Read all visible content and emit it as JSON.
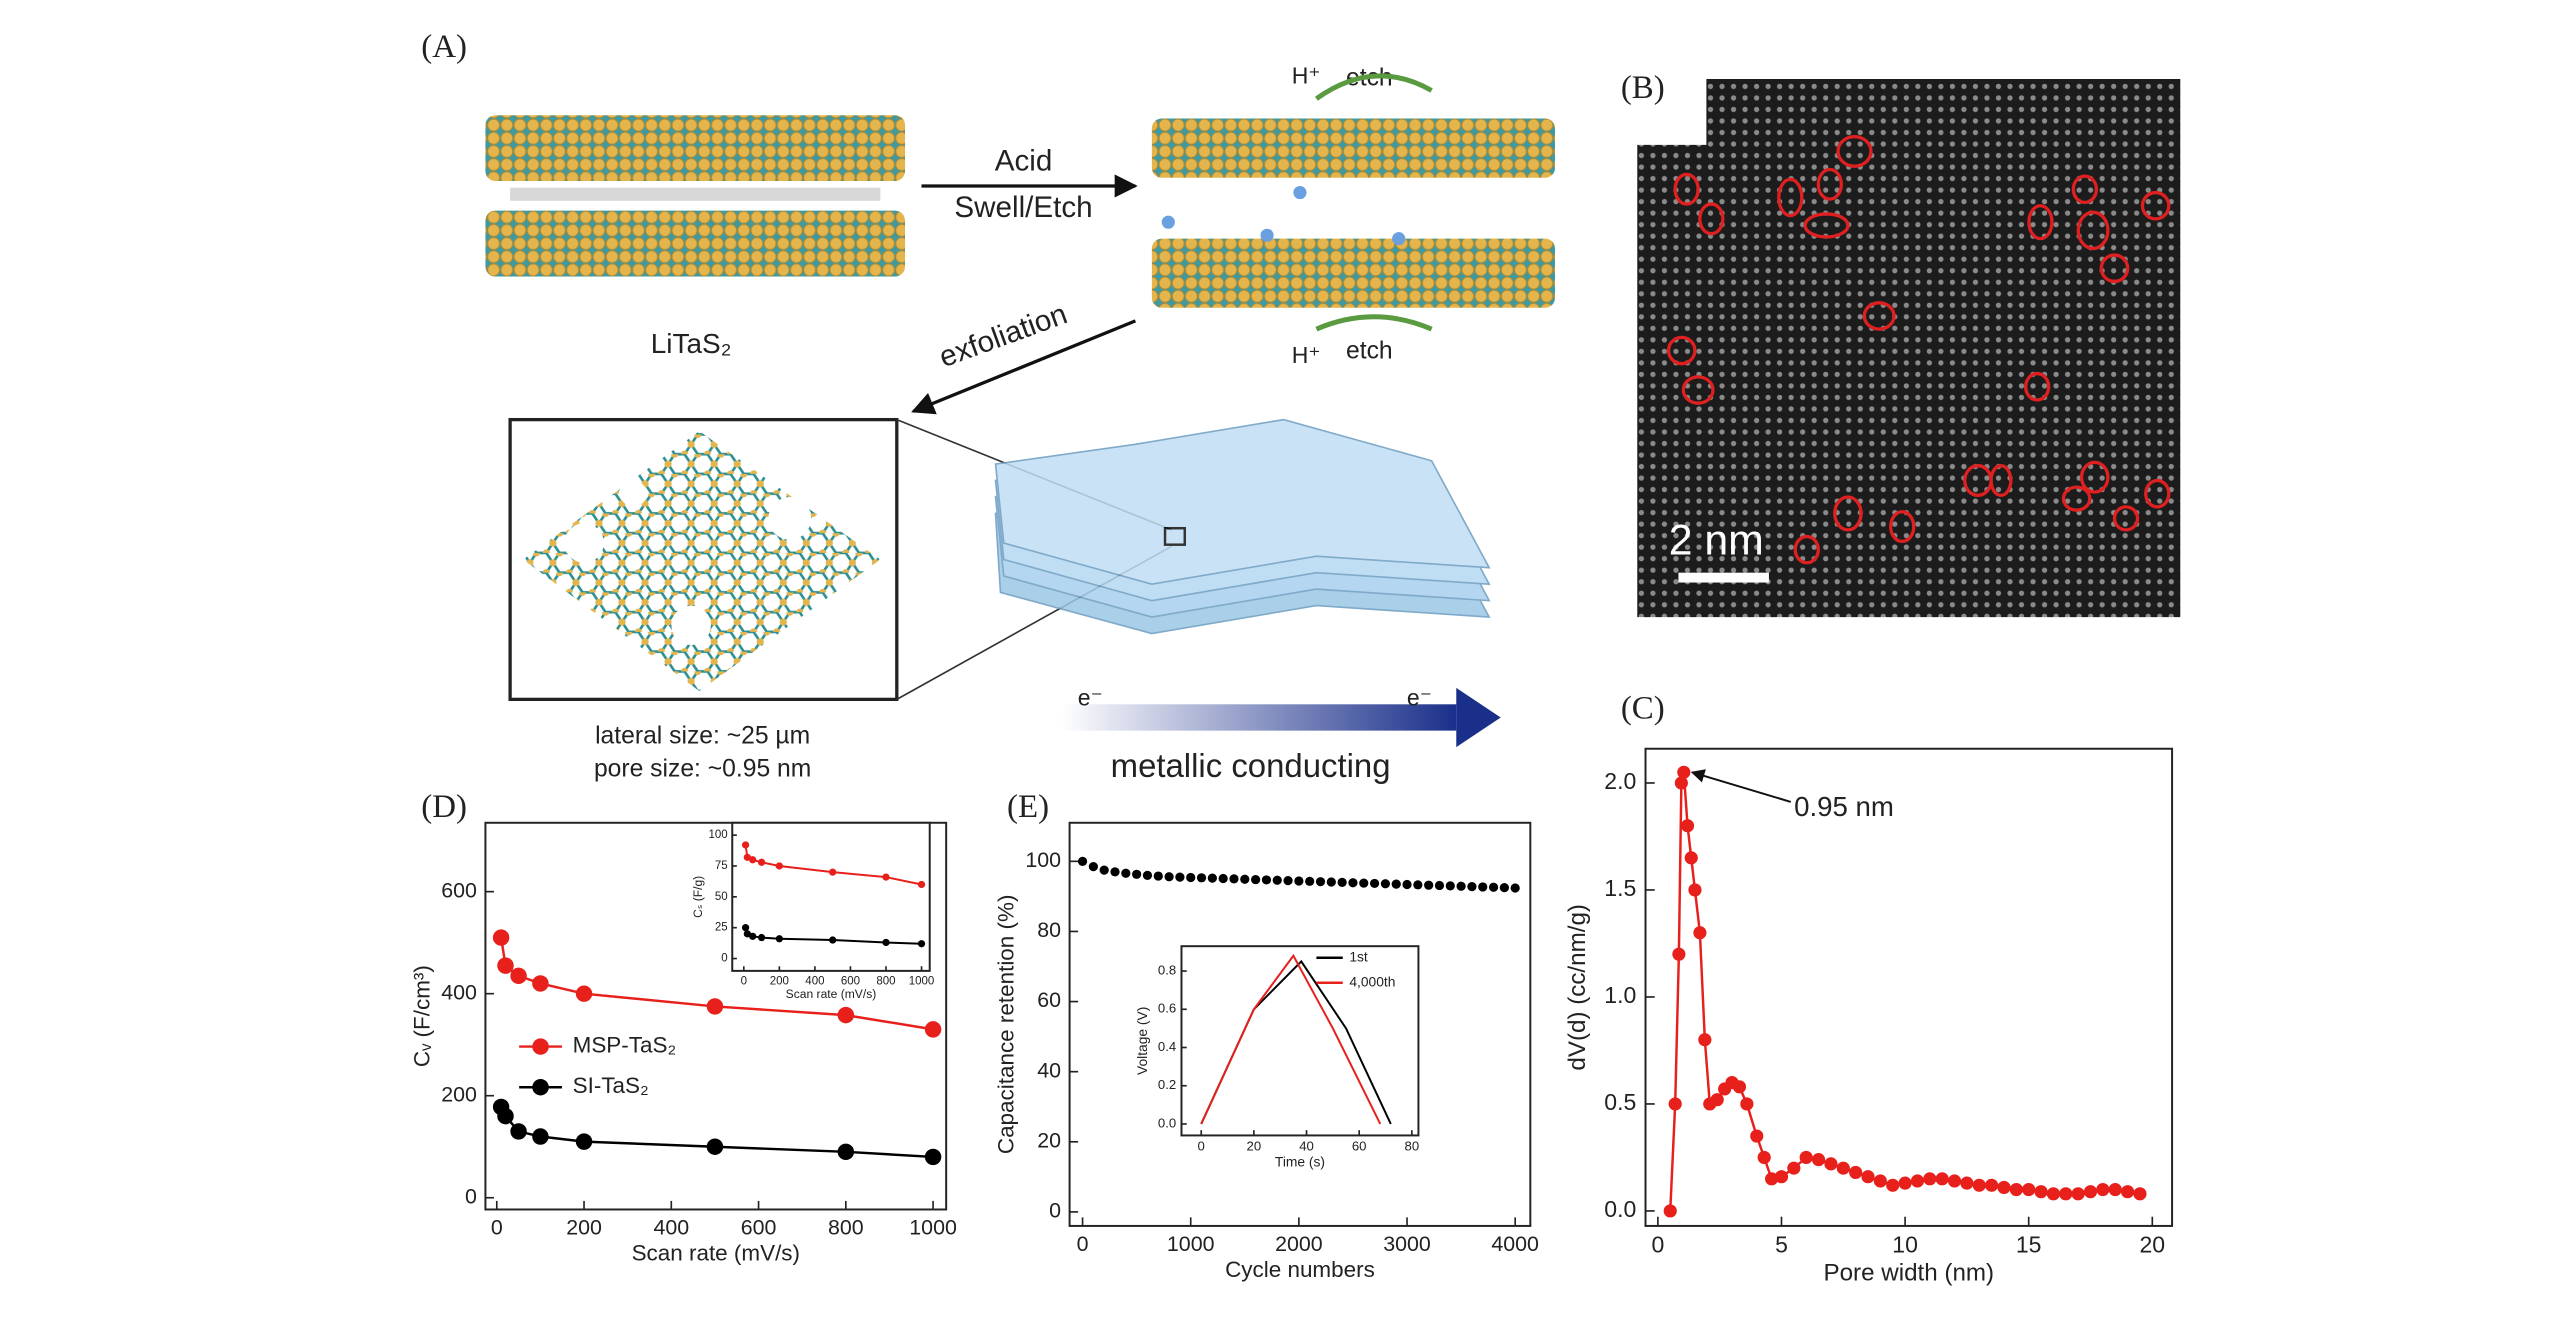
{
  "figure": {
    "panel_a": "(A)",
    "panel_b": "(B)",
    "panel_c": "(C)",
    "panel_d": "(D)",
    "panel_e": "(E)",
    "acid": "Acid",
    "swell_etch": "Swell/Etch",
    "litas2": "LiTaS₂",
    "exfoliation": "exfoliation",
    "h_plus": "H⁺",
    "etch": "etch",
    "lateral_size": "lateral size: ~25 µm",
    "pore_size": "pore size: ~0.95 nm",
    "electron": "e⁻",
    "metallic_conducting": "metallic conducting",
    "scale_bar": "2 nm"
  },
  "chart_data": [
    {
      "type": "line",
      "markers": true,
      "xlabel": "Scan rate (mV/s)",
      "ylabel": "Cᵥ (F/cm³)",
      "x": [
        10,
        20,
        50,
        100,
        200,
        500,
        800,
        1000
      ],
      "series": [
        {
          "name": "MSP-TaS₂",
          "color": "#e8201c",
          "values": [
            510,
            455,
            435,
            420,
            400,
            375,
            358,
            330
          ]
        },
        {
          "name": "SI-TaS₂",
          "color": "#000000",
          "values": [
            178,
            160,
            130,
            120,
            110,
            100,
            90,
            80
          ]
        }
      ],
      "xlim": [
        -26,
        1030
      ],
      "xticks": [
        0,
        200,
        400,
        600,
        800,
        1000
      ],
      "ylim": [
        -23,
        735
      ],
      "yticks": [
        0,
        200,
        400,
        600
      ]
    },
    {
      "type": "line",
      "markers": true,
      "xlabel": "Scan rate (mV/s)",
      "ylabel": "Cₛ (F/g)",
      "x": [
        10,
        20,
        50,
        100,
        200,
        500,
        800,
        1000
      ],
      "series": [
        {
          "color": "#e8201c",
          "values": [
            92,
            82,
            80,
            78,
            75,
            70,
            66,
            60
          ]
        },
        {
          "color": "#000000",
          "values": [
            25,
            20,
            18,
            17,
            16,
            15,
            13,
            12
          ]
        }
      ],
      "xlim": [
        -65,
        1046
      ],
      "xticks": [
        0,
        200,
        400,
        600,
        800,
        1000
      ],
      "ylim": [
        -10,
        110
      ],
      "yticks": [
        0,
        25,
        50,
        75,
        100
      ]
    },
    {
      "type": "scatter",
      "xlabel": "Cycle numbers",
      "ylabel": "Capacitance retention (%)",
      "x": [
        0,
        100,
        200,
        300,
        400,
        500,
        600,
        700,
        800,
        900,
        1000,
        1100,
        1200,
        1300,
        1400,
        1500,
        1600,
        1700,
        1800,
        1900,
        2000,
        2100,
        2200,
        2300,
        2400,
        2500,
        2600,
        2700,
        2800,
        2900,
        3000,
        3100,
        3200,
        3300,
        3400,
        3500,
        3600,
        3700,
        3800,
        3900,
        4000
      ],
      "series": [
        {
          "color": "#000000",
          "values": [
            100,
            98.5,
            97.5,
            97,
            96.6,
            96.3,
            96,
            95.8,
            95.6,
            95.5,
            95.4,
            95.3,
            95.2,
            95.1,
            95,
            94.9,
            94.8,
            94.7,
            94.6,
            94.5,
            94.4,
            94.3,
            94.2,
            94.1,
            94,
            93.9,
            93.8,
            93.7,
            93.6,
            93.5,
            93.4,
            93.3,
            93.2,
            93.1,
            93,
            92.9,
            92.8,
            92.7,
            92.6,
            92.5,
            92.4
          ]
        }
      ],
      "xlim": [
        -120,
        4140
      ],
      "xticks": [
        0,
        1000,
        2000,
        3000,
        4000
      ],
      "ylim": [
        -4,
        111
      ],
      "yticks": [
        0,
        20,
        40,
        60,
        80,
        100
      ]
    },
    {
      "type": "line",
      "markers": false,
      "xlabel": "Time (s)",
      "ylabel": "Voltage (V)",
      "series": [
        {
          "name": "1st",
          "color": "#000000",
          "x": [
            0,
            20,
            38,
            55,
            72
          ],
          "values": [
            0,
            0.6,
            0.85,
            0.5,
            0
          ]
        },
        {
          "name": "4,000th",
          "color": "#e8201c",
          "x": [
            0,
            20,
            35,
            50,
            68
          ],
          "values": [
            0,
            0.6,
            0.88,
            0.5,
            0
          ]
        }
      ],
      "xlim": [
        -7.5,
        82.5
      ],
      "xticks": [
        0,
        20,
        40,
        60,
        80
      ],
      "ylim": [
        -0.06,
        0.93
      ],
      "yticks": [
        {
          "value": 0,
          "label": "0.0"
        },
        0.2,
        0.4,
        0.6,
        0.8
      ]
    },
    {
      "type": "line",
      "markers": true,
      "xlabel": "Pore width (nm)",
      "ylabel": "dV(d) (cc/nm/g)",
      "annotation": "0.95 nm",
      "x": [
        0.5,
        0.7,
        0.85,
        0.95,
        1.05,
        1.2,
        1.35,
        1.5,
        1.7,
        1.9,
        2.1,
        2.4,
        2.7,
        3.0,
        3.3,
        3.6,
        4.0,
        4.3,
        4.6,
        5.0,
        5.5,
        6.0,
        6.5,
        7.0,
        7.5,
        8.0,
        8.5,
        9.0,
        9.5,
        10,
        10.5,
        11,
        11.5,
        12,
        12.5,
        13,
        13.5,
        14,
        14.5,
        15,
        15.5,
        16,
        16.5,
        17,
        17.5,
        18,
        18.5,
        19,
        19.5
      ],
      "series": [
        {
          "color": "#e8201c",
          "values": [
            0,
            0.5,
            1.2,
            2.0,
            2.05,
            1.8,
            1.65,
            1.5,
            1.3,
            0.8,
            0.5,
            0.52,
            0.57,
            0.6,
            0.58,
            0.5,
            0.35,
            0.25,
            0.15,
            0.16,
            0.2,
            0.25,
            0.24,
            0.22,
            0.2,
            0.18,
            0.16,
            0.14,
            0.12,
            0.13,
            0.14,
            0.15,
            0.15,
            0.14,
            0.13,
            0.12,
            0.12,
            0.11,
            0.1,
            0.1,
            0.09,
            0.08,
            0.08,
            0.08,
            0.09,
            0.1,
            0.1,
            0.09,
            0.08
          ]
        }
      ],
      "xlim": [
        -0.5,
        20.8
      ],
      "xticks": [
        0,
        5,
        10,
        15,
        20
      ],
      "ylim": [
        -0.07,
        2.16
      ],
      "yticks": [
        {
          "value": 0,
          "label": "0.0"
        },
        0.5,
        {
          "value": 1,
          "label": "1.0"
        },
        1.5,
        {
          "value": 2,
          "label": "2.0"
        }
      ]
    }
  ]
}
